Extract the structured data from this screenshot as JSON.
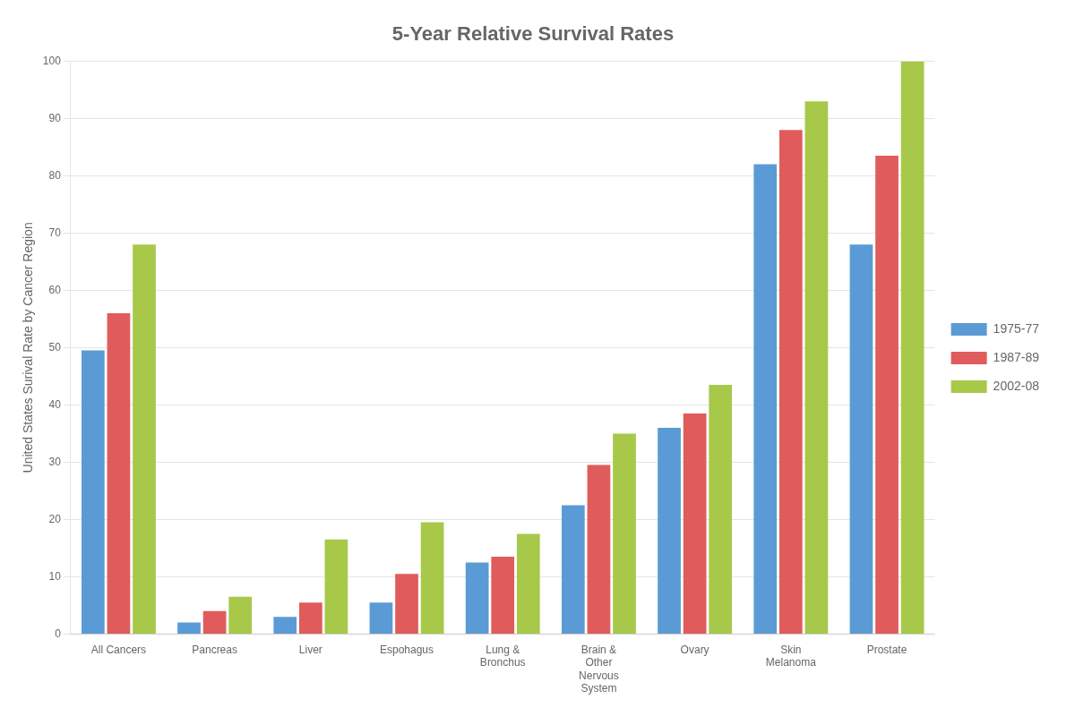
{
  "chart_data": {
    "type": "bar",
    "title": "5-Year Relative Survival Rates",
    "ylabel": "United States Surival Rate by Cancer Region",
    "categories": [
      "All Cancers",
      "Pancreas",
      "Liver",
      "Espohagus",
      "Lung &\nBronchus",
      "Brain &\nOther\nNervous\nSystem",
      "Ovary",
      "Skin\nMelanoma",
      "Prostate"
    ],
    "series": [
      {
        "name": "1975-77",
        "color": "#5B9BD5",
        "values": [
          49.5,
          2.0,
          3.0,
          5.5,
          12.5,
          22.5,
          36.0,
          82.0,
          68.0
        ]
      },
      {
        "name": "1987-89",
        "color": "#E05C5C",
        "values": [
          56.0,
          4.0,
          5.5,
          10.5,
          13.5,
          29.5,
          38.5,
          88.0,
          83.5
        ]
      },
      {
        "name": "2002-08",
        "color": "#A8C84A",
        "values": [
          68.0,
          6.5,
          16.5,
          19.5,
          17.5,
          35.0,
          43.5,
          93.0,
          100.0
        ]
      }
    ],
    "ylim": [
      0,
      100
    ],
    "yticks": [
      0,
      10,
      20,
      30,
      40,
      50,
      60,
      70,
      80,
      90,
      100
    ],
    "grid": true,
    "legend": "right"
  }
}
